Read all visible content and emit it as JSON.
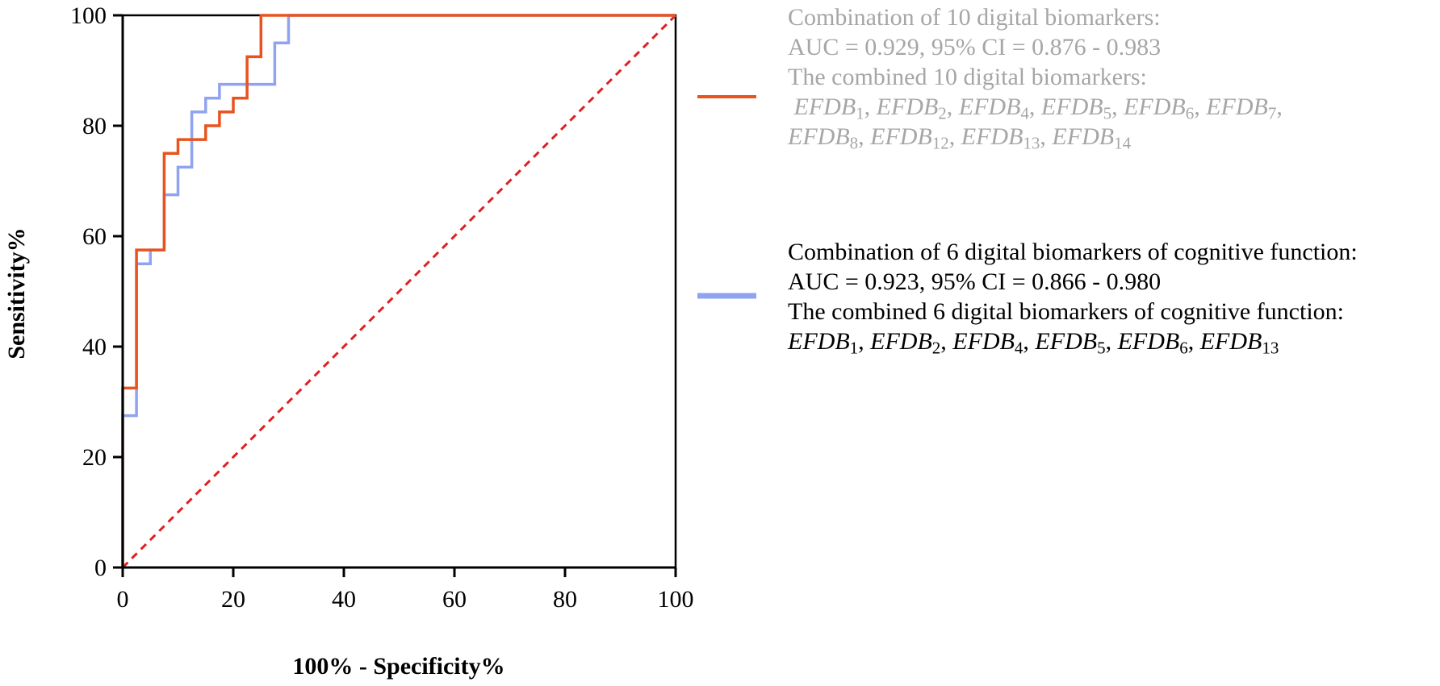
{
  "chart_data": {
    "type": "line",
    "xlabel": "100% - Specificity%",
    "ylabel": "Sensitivity%",
    "xlim": [
      0,
      100
    ],
    "ylim": [
      0,
      100
    ],
    "x_ticks": [
      "0",
      "20",
      "40",
      "60",
      "80",
      "100"
    ],
    "y_ticks": [
      "0",
      "20",
      "40",
      "60",
      "80",
      "100"
    ],
    "grid": false,
    "legend_placement": "right",
    "series": [
      {
        "color": "#e8531e",
        "points": [
          [
            0,
            0
          ],
          [
            0,
            32.5
          ],
          [
            2.5,
            32.5
          ],
          [
            2.5,
            57.5
          ],
          [
            7.5,
            57.5
          ],
          [
            7.5,
            75
          ],
          [
            10,
            75
          ],
          [
            10,
            77.5
          ],
          [
            15,
            77.5
          ],
          [
            15,
            80
          ],
          [
            17.5,
            80
          ],
          [
            17.5,
            82.5
          ],
          [
            20,
            82.5
          ],
          [
            20,
            85
          ],
          [
            22.5,
            85
          ],
          [
            22.5,
            92.5
          ],
          [
            25,
            92.5
          ],
          [
            25,
            100
          ],
          [
            100,
            100
          ]
        ]
      },
      {
        "color": "#8fa3f0",
        "points": [
          [
            0,
            0
          ],
          [
            0,
            27.5
          ],
          [
            2.5,
            27.5
          ],
          [
            2.5,
            55
          ],
          [
            5,
            55
          ],
          [
            5,
            57.5
          ],
          [
            7.5,
            57.5
          ],
          [
            7.5,
            67.5
          ],
          [
            10,
            67.5
          ],
          [
            10,
            72.5
          ],
          [
            12.5,
            72.5
          ],
          [
            12.5,
            82.5
          ],
          [
            15,
            82.5
          ],
          [
            15,
            85
          ],
          [
            17.5,
            85
          ],
          [
            17.5,
            87.5
          ],
          [
            27.5,
            87.5
          ],
          [
            27.5,
            95
          ],
          [
            30,
            95
          ],
          [
            30,
            100
          ],
          [
            100,
            100
          ]
        ]
      },
      {
        "color": "#e02020",
        "style": "dashed",
        "points": [
          [
            0,
            0
          ],
          [
            100,
            100
          ]
        ]
      }
    ],
    "legend": [
      {
        "color": "#e8531e",
        "text_color": "#a6a6a6",
        "line1": "Combination of 10 digital biomarkers:",
        "line2": "AUC = 0.929, 95% CI = 0.876 - 0.983",
        "line3": "The combined 10 digital biomarkers:",
        "markers": [
          "EFDB1",
          "EFDB2",
          "EFDB4",
          "EFDB5",
          "EFDB6",
          "EFDB7",
          "EFDB8",
          "EFDB12",
          "EFDB13",
          "EFDB14"
        ]
      },
      {
        "color": "#8fa3f0",
        "text_color": "#000000",
        "line1": "Combination of 6 digital biomarkers of cognitive function:",
        "line2": "AUC = 0.923, 95% CI = 0.866 - 0.980",
        "line3": "The combined 6 digital biomarkers of cognitive function:",
        "markers": [
          "EFDB1",
          "EFDB2",
          "EFDB4",
          "EFDB5",
          "EFDB6",
          "EFDB13"
        ]
      }
    ]
  }
}
